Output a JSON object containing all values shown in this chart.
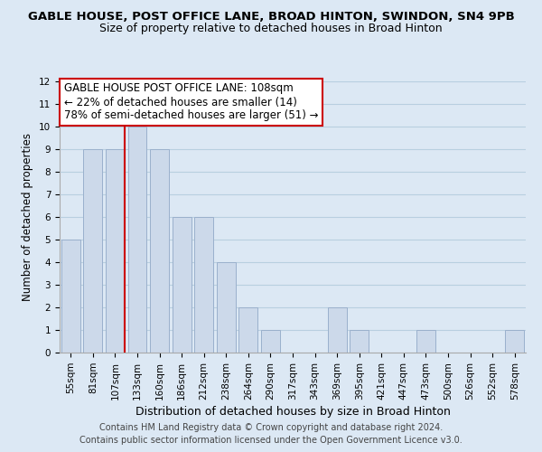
{
  "title": "GABLE HOUSE, POST OFFICE LANE, BROAD HINTON, SWINDON, SN4 9PB",
  "subtitle": "Size of property relative to detached houses in Broad Hinton",
  "xlabel": "Distribution of detached houses by size in Broad Hinton",
  "ylabel": "Number of detached properties",
  "bar_labels": [
    "55sqm",
    "81sqm",
    "107sqm",
    "133sqm",
    "160sqm",
    "186sqm",
    "212sqm",
    "238sqm",
    "264sqm",
    "290sqm",
    "317sqm",
    "343sqm",
    "369sqm",
    "395sqm",
    "421sqm",
    "447sqm",
    "473sqm",
    "500sqm",
    "526sqm",
    "552sqm",
    "578sqm"
  ],
  "bar_values": [
    5,
    9,
    9,
    10,
    9,
    6,
    6,
    4,
    2,
    1,
    0,
    0,
    2,
    1,
    0,
    0,
    1,
    0,
    0,
    0,
    1
  ],
  "bar_color": "#ccd9ea",
  "bar_edge_color": "#9ab0cc",
  "highlight_index": 2,
  "highlight_line_color": "#cc0000",
  "grid_color": "#b8cfe0",
  "bg_color": "#dce8f4",
  "annotation_box_text": "GABLE HOUSE POST OFFICE LANE: 108sqm\n← 22% of detached houses are smaller (14)\n78% of semi-detached houses are larger (51) →",
  "annotation_box_color": "#ffffff",
  "annotation_box_edge_color": "#cc0000",
  "footnote_line1": "Contains HM Land Registry data © Crown copyright and database right 2024.",
  "footnote_line2": "Contains public sector information licensed under the Open Government Licence v3.0.",
  "ylim": [
    0,
    12
  ],
  "yticks": [
    0,
    1,
    2,
    3,
    4,
    5,
    6,
    7,
    8,
    9,
    10,
    11,
    12
  ],
  "title_fontsize": 9.5,
  "subtitle_fontsize": 9,
  "xlabel_fontsize": 9,
  "ylabel_fontsize": 8.5,
  "tick_fontsize": 7.5,
  "annotation_fontsize": 8.5,
  "footnote_fontsize": 7
}
